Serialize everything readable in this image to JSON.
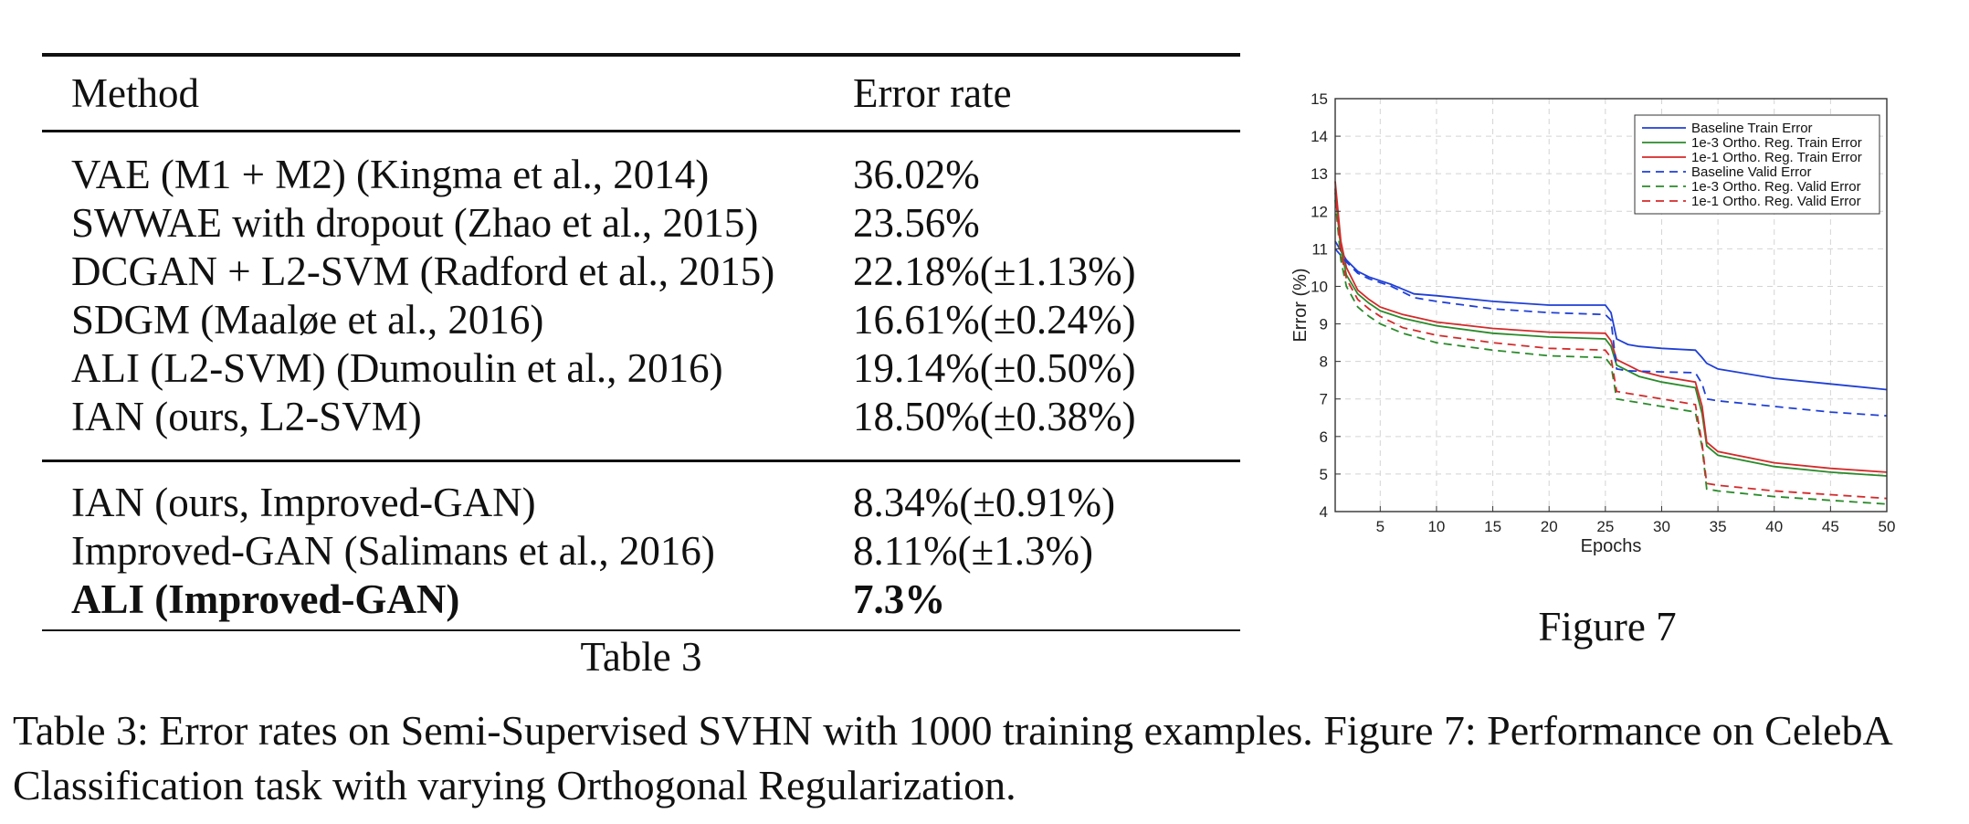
{
  "table": {
    "header": {
      "method": "Method",
      "error": "Error rate"
    },
    "group1": [
      {
        "method": "VAE (M1 + M2) (Kingma et al., 2014)",
        "error": "36.02%"
      },
      {
        "method": "SWWAE with dropout (Zhao et al., 2015)",
        "error": "23.56%"
      },
      {
        "method": "DCGAN + L2-SVM (Radford et al., 2015)",
        "error": "22.18%(±1.13%)"
      },
      {
        "method": "SDGM (Maaløe et al., 2016)",
        "error": "16.61%(±0.24%)"
      },
      {
        "method": "ALI (L2-SVM) (Dumoulin et al., 2016)",
        "error": "19.14%(±0.50%)"
      },
      {
        "method": "IAN (ours, L2-SVM)",
        "error": "18.50%(±0.38%)"
      }
    ],
    "group2": [
      {
        "method": "IAN (ours, Improved-GAN)",
        "error": "8.34%(±0.91%)"
      },
      {
        "method": "Improved-GAN (Salimans et al., 2016)",
        "error": "8.11%(±1.3%)"
      },
      {
        "method": "ALI (Improved-GAN)",
        "error": "7.3%"
      }
    ],
    "caption": "Table 3"
  },
  "figure": {
    "caption": "Figure 7"
  },
  "chart_data": {
    "type": "line",
    "xlabel": "Epochs",
    "ylabel": "Error (%)",
    "xlim": [
      1,
      50
    ],
    "ylim": [
      4,
      15
    ],
    "xticks": [
      5,
      10,
      15,
      20,
      25,
      30,
      35,
      40,
      45,
      50
    ],
    "yticks": [
      4,
      5,
      6,
      7,
      8,
      9,
      10,
      11,
      12,
      13,
      14,
      15
    ],
    "grid": true,
    "legend_position": "top-right",
    "series": [
      {
        "name": "Baseline Train Error",
        "color": "#1f3fd6",
        "dash": false,
        "points": [
          [
            1,
            11.2
          ],
          [
            2,
            10.7
          ],
          [
            3,
            10.4
          ],
          [
            4,
            10.25
          ],
          [
            5,
            10.15
          ],
          [
            6,
            10.05
          ],
          [
            8,
            9.8
          ],
          [
            10,
            9.75
          ],
          [
            15,
            9.6
          ],
          [
            20,
            9.5
          ],
          [
            25,
            9.5
          ],
          [
            25.5,
            9.3
          ],
          [
            26,
            8.6
          ],
          [
            27,
            8.45
          ],
          [
            28,
            8.4
          ],
          [
            30,
            8.35
          ],
          [
            33,
            8.3
          ],
          [
            33.6,
            8.1
          ],
          [
            34,
            7.95
          ],
          [
            35,
            7.8
          ],
          [
            40,
            7.55
          ],
          [
            45,
            7.4
          ],
          [
            50,
            7.25
          ]
        ]
      },
      {
        "name": "1e-3 Ortho. Reg. Train Error",
        "color": "#2a8a2a",
        "dash": false,
        "points": [
          [
            1,
            12.5
          ],
          [
            1.5,
            11.0
          ],
          [
            2,
            10.3
          ],
          [
            3,
            9.8
          ],
          [
            4,
            9.55
          ],
          [
            5,
            9.35
          ],
          [
            7,
            9.15
          ],
          [
            10,
            8.95
          ],
          [
            15,
            8.75
          ],
          [
            20,
            8.65
          ],
          [
            25,
            8.6
          ],
          [
            25.5,
            8.4
          ],
          [
            26,
            7.9
          ],
          [
            27,
            7.75
          ],
          [
            28,
            7.6
          ],
          [
            30,
            7.45
          ],
          [
            33,
            7.3
          ],
          [
            33.6,
            6.6
          ],
          [
            34,
            5.75
          ],
          [
            35,
            5.5
          ],
          [
            40,
            5.2
          ],
          [
            45,
            5.05
          ],
          [
            50,
            4.95
          ]
        ]
      },
      {
        "name": "1e-1 Ortho. Reg. Train Error",
        "color": "#d42a2a",
        "dash": false,
        "points": [
          [
            1,
            12.8
          ],
          [
            1.5,
            11.2
          ],
          [
            2,
            10.5
          ],
          [
            3,
            9.9
          ],
          [
            4,
            9.65
          ],
          [
            5,
            9.45
          ],
          [
            7,
            9.25
          ],
          [
            10,
            9.05
          ],
          [
            15,
            8.88
          ],
          [
            20,
            8.78
          ],
          [
            25,
            8.75
          ],
          [
            25.5,
            8.55
          ],
          [
            26,
            8.05
          ],
          [
            27,
            7.9
          ],
          [
            28,
            7.75
          ],
          [
            30,
            7.6
          ],
          [
            33,
            7.45
          ],
          [
            33.6,
            6.8
          ],
          [
            34,
            5.85
          ],
          [
            35,
            5.6
          ],
          [
            40,
            5.3
          ],
          [
            45,
            5.15
          ],
          [
            50,
            5.05
          ]
        ]
      },
      {
        "name": "Baseline Valid Error",
        "color": "#1f3fd6",
        "dash": true,
        "points": [
          [
            1,
            11.0
          ],
          [
            2,
            10.65
          ],
          [
            3,
            10.35
          ],
          [
            4,
            10.2
          ],
          [
            5,
            10.1
          ],
          [
            6,
            10.0
          ],
          [
            7,
            9.85
          ],
          [
            8,
            9.7
          ],
          [
            10,
            9.6
          ],
          [
            15,
            9.4
          ],
          [
            20,
            9.3
          ],
          [
            25,
            9.25
          ],
          [
            25.5,
            9.1
          ],
          [
            26,
            7.8
          ],
          [
            27,
            7.75
          ],
          [
            30,
            7.72
          ],
          [
            33,
            7.7
          ],
          [
            33.6,
            7.4
          ],
          [
            34,
            7.0
          ],
          [
            35,
            6.95
          ],
          [
            40,
            6.8
          ],
          [
            45,
            6.65
          ],
          [
            50,
            6.55
          ]
        ]
      },
      {
        "name": "1e-3 Ortho. Reg. Valid Error",
        "color": "#2a8a2a",
        "dash": true,
        "points": [
          [
            1,
            12.3
          ],
          [
            1.5,
            10.7
          ],
          [
            2,
            10.0
          ],
          [
            3,
            9.45
          ],
          [
            4,
            9.2
          ],
          [
            5,
            9.0
          ],
          [
            7,
            8.75
          ],
          [
            10,
            8.5
          ],
          [
            15,
            8.3
          ],
          [
            20,
            8.15
          ],
          [
            25,
            8.1
          ],
          [
            25.5,
            7.9
          ],
          [
            26,
            7.0
          ],
          [
            27,
            6.95
          ],
          [
            28,
            6.9
          ],
          [
            30,
            6.8
          ],
          [
            33,
            6.65
          ],
          [
            33.6,
            5.7
          ],
          [
            34,
            4.6
          ],
          [
            35,
            4.55
          ],
          [
            40,
            4.4
          ],
          [
            45,
            4.3
          ],
          [
            50,
            4.2
          ]
        ]
      },
      {
        "name": "1e-1 Ortho. Reg. Valid Error",
        "color": "#d42a2a",
        "dash": true,
        "points": [
          [
            1,
            12.6
          ],
          [
            1.5,
            10.9
          ],
          [
            2,
            10.2
          ],
          [
            3,
            9.65
          ],
          [
            4,
            9.4
          ],
          [
            5,
            9.2
          ],
          [
            7,
            8.9
          ],
          [
            10,
            8.7
          ],
          [
            15,
            8.5
          ],
          [
            20,
            8.35
          ],
          [
            25,
            8.3
          ],
          [
            25.5,
            8.1
          ],
          [
            26,
            7.2
          ],
          [
            27,
            7.15
          ],
          [
            28,
            7.1
          ],
          [
            30,
            7.0
          ],
          [
            33,
            6.85
          ],
          [
            33.6,
            5.8
          ],
          [
            34,
            4.75
          ],
          [
            35,
            4.7
          ],
          [
            40,
            4.55
          ],
          [
            45,
            4.45
          ],
          [
            50,
            4.35
          ]
        ]
      }
    ]
  },
  "caption": "Table 3:  Error rates on Semi-Supervised SVHN with 1000 training examples. Figure 7: Performance on CelebA Classification task with varying Orthogonal Regularization."
}
